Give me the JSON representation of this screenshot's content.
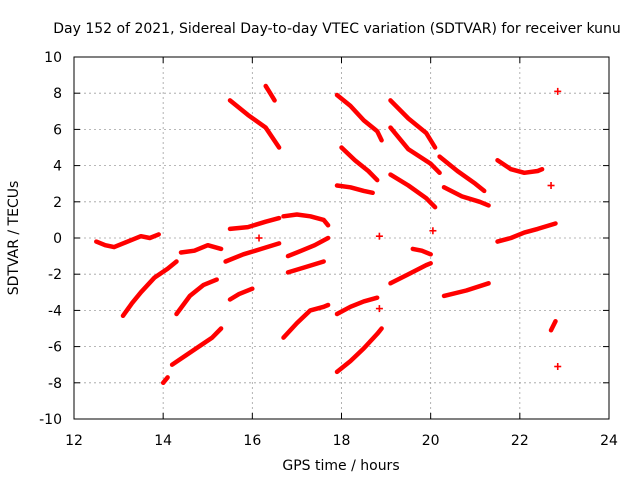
{
  "chart_data": {
    "type": "scatter",
    "title": "Day 152 of 2021, Sidereal Day-to-day VTEC variation (SDTVAR) for receiver kunu",
    "xlabel": "GPS time / hours",
    "ylabel": "SDTVAR / TECUs",
    "xlim": [
      12,
      24
    ],
    "ylim": [
      -10,
      10
    ],
    "xticks": [
      "12",
      "14",
      "16",
      "18",
      "20",
      "22",
      "24"
    ],
    "yticks": [
      "10",
      "8",
      "6",
      "4",
      "2",
      "0",
      "-2",
      "-4",
      "-6",
      "-8",
      "-10"
    ],
    "grid": true,
    "marker_color": "#ff0000",
    "series": [
      {
        "name": "s1",
        "x": [
          12.5,
          12.7,
          12.9,
          13.1,
          13.3,
          13.5,
          13.7,
          13.9
        ],
        "y": [
          -0.2,
          -0.4,
          -0.5,
          -0.3,
          -0.1,
          0.1,
          0.0,
          0.2
        ]
      },
      {
        "name": "s2",
        "x": [
          13.1,
          13.3,
          13.5,
          13.8,
          14.1,
          14.3
        ],
        "y": [
          -4.3,
          -3.6,
          -3.0,
          -2.2,
          -1.7,
          -1.3
        ]
      },
      {
        "name": "s3",
        "x": [
          14.0,
          14.1
        ],
        "y": [
          -8.0,
          -7.7
        ]
      },
      {
        "name": "s4",
        "x": [
          14.2,
          14.5,
          14.8,
          15.1,
          15.3
        ],
        "y": [
          -7.0,
          -6.5,
          -6.0,
          -5.5,
          -5.0
        ]
      },
      {
        "name": "s5",
        "x": [
          14.3,
          14.6,
          14.9,
          15.2
        ],
        "y": [
          -4.2,
          -3.2,
          -2.6,
          -2.3
        ]
      },
      {
        "name": "s6",
        "x": [
          14.4,
          14.7,
          15.0,
          15.3
        ],
        "y": [
          -0.8,
          -0.7,
          -0.4,
          -0.6
        ]
      },
      {
        "name": "s7",
        "x": [
          15.5,
          15.9,
          16.3,
          16.6
        ],
        "y": [
          7.6,
          6.8,
          6.1,
          5.0
        ]
      },
      {
        "name": "s8",
        "x": [
          16.3,
          16.4,
          16.5
        ],
        "y": [
          8.4,
          8.0,
          7.6
        ]
      },
      {
        "name": "s9",
        "x": [
          15.4,
          15.8,
          16.2,
          16.6
        ],
        "y": [
          -1.3,
          -0.9,
          -0.6,
          -0.3
        ]
      },
      {
        "name": "s10",
        "x": [
          15.5,
          15.9,
          16.3,
          16.6
        ],
        "y": [
          0.5,
          0.6,
          0.9,
          1.1
        ]
      },
      {
        "name": "s11",
        "x": [
          16.7,
          17.0,
          17.3,
          17.6,
          17.7
        ],
        "y": [
          1.2,
          1.3,
          1.2,
          1.0,
          0.7
        ]
      },
      {
        "name": "s12",
        "x": [
          16.8,
          17.1,
          17.4,
          17.7
        ],
        "y": [
          -1.0,
          -0.7,
          -0.4,
          0.0
        ]
      },
      {
        "name": "s13",
        "x": [
          16.8,
          17.2,
          17.6
        ],
        "y": [
          -1.9,
          -1.6,
          -1.3
        ]
      },
      {
        "name": "s14",
        "x": [
          15.5,
          15.7,
          16.0
        ],
        "y": [
          -3.4,
          -3.1,
          -2.8
        ]
      },
      {
        "name": "s15",
        "x": [
          16.7,
          17.0,
          17.3,
          17.6,
          17.7
        ],
        "y": [
          -5.5,
          -4.7,
          -4.0,
          -3.8,
          -3.7
        ]
      },
      {
        "name": "s16",
        "x": [
          17.9,
          18.2,
          18.5,
          18.8,
          18.9
        ],
        "y": [
          -7.4,
          -6.8,
          -6.1,
          -5.3,
          -5.0
        ]
      },
      {
        "name": "s17",
        "x": [
          17.9,
          18.2,
          18.5,
          18.8
        ],
        "y": [
          -4.2,
          -3.8,
          -3.5,
          -3.3
        ]
      },
      {
        "name": "s18",
        "x": [
          17.9,
          18.2,
          18.5,
          18.8,
          18.9
        ],
        "y": [
          7.9,
          7.3,
          6.5,
          5.9,
          5.4
        ]
      },
      {
        "name": "s19",
        "x": [
          18.0,
          18.3,
          18.6,
          18.8
        ],
        "y": [
          5.0,
          4.3,
          3.7,
          3.2
        ]
      },
      {
        "name": "s20",
        "x": [
          17.9,
          18.2,
          18.5,
          18.7
        ],
        "y": [
          2.9,
          2.8,
          2.6,
          2.5
        ]
      },
      {
        "name": "s21",
        "x": [
          19.1,
          19.5,
          19.9,
          20.1
        ],
        "y": [
          7.6,
          6.6,
          5.8,
          5.0
        ]
      },
      {
        "name": "s22",
        "x": [
          19.1,
          19.5,
          20.0,
          20.2
        ],
        "y": [
          6.1,
          4.9,
          4.1,
          3.6
        ]
      },
      {
        "name": "s23",
        "x": [
          19.1,
          19.5,
          19.9,
          20.1
        ],
        "y": [
          3.5,
          2.9,
          2.2,
          1.7
        ]
      },
      {
        "name": "s24",
        "x": [
          20.2,
          20.6,
          21.0,
          21.2
        ],
        "y": [
          4.5,
          3.7,
          3.0,
          2.6
        ]
      },
      {
        "name": "s25",
        "x": [
          20.3,
          20.7,
          21.1,
          21.3
        ],
        "y": [
          2.8,
          2.3,
          2.0,
          1.8
        ]
      },
      {
        "name": "s26",
        "x": [
          19.1,
          19.5,
          19.9,
          20.0
        ],
        "y": [
          -2.5,
          -2.0,
          -1.5,
          -1.4
        ]
      },
      {
        "name": "s27",
        "x": [
          19.6,
          19.8,
          20.0
        ],
        "y": [
          -0.6,
          -0.7,
          -0.9
        ]
      },
      {
        "name": "s28",
        "x": [
          20.3,
          20.8,
          21.3
        ],
        "y": [
          -3.2,
          -2.9,
          -2.5
        ]
      },
      {
        "name": "s29",
        "x": [
          21.5,
          21.8,
          22.1,
          22.4,
          22.5
        ],
        "y": [
          4.3,
          3.8,
          3.6,
          3.7,
          3.8
        ]
      },
      {
        "name": "s30",
        "x": [
          21.5,
          21.8,
          22.1,
          22.4,
          22.8
        ],
        "y": [
          -0.2,
          0.0,
          0.3,
          0.5,
          0.8
        ]
      },
      {
        "name": "s31",
        "x": [
          22.7,
          22.8
        ],
        "y": [
          -5.1,
          -4.6
        ]
      },
      {
        "name": "dots",
        "x": [
          22.85,
          22.7,
          22.85,
          20.05,
          18.85,
          18.85,
          16.15
        ],
        "y": [
          8.1,
          2.9,
          -7.1,
          0.4,
          0.1,
          -3.9,
          0.0
        ]
      }
    ]
  }
}
